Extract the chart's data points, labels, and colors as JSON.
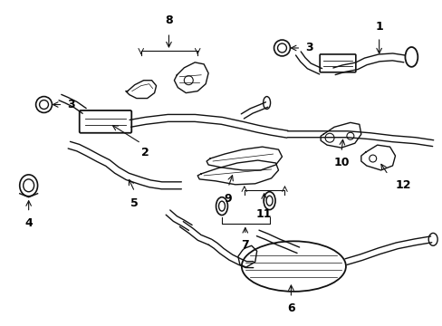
{
  "bg_color": "#ffffff",
  "line_color": "#111111",
  "text_color": "#000000",
  "fig_width": 4.89,
  "fig_height": 3.6,
  "dpi": 100,
  "label_fontsize": 9,
  "lw": 1.0
}
